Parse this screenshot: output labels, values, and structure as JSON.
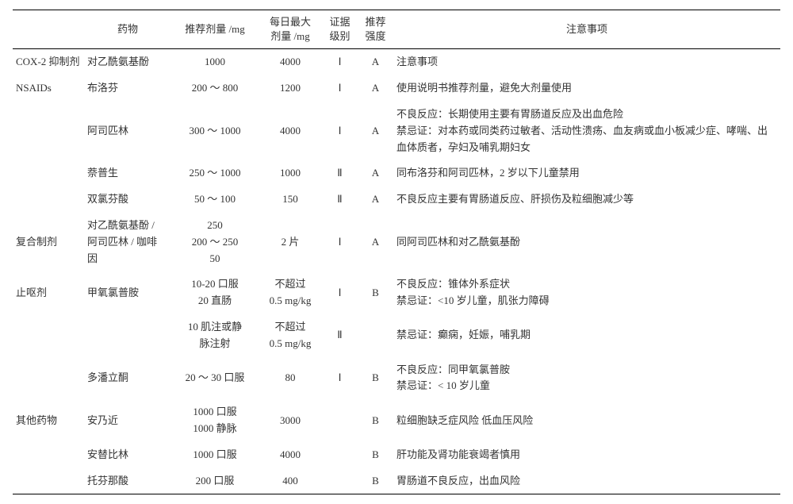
{
  "table": {
    "headers": {
      "category": "",
      "drug": "药物",
      "dose": "推荐剂量 /mg",
      "max": "每日最大\n剂量 /mg",
      "evidence": "证据\n级别",
      "recommend": "推荐\n强度",
      "notes": "注意事项"
    },
    "rows": [
      {
        "category": "COX-2 抑制剂",
        "drug": "对乙酰氨基酚",
        "dose": "1000",
        "max": "4000",
        "evidence": "Ⅰ",
        "recommend": "A",
        "notes": "注意事项"
      },
      {
        "category": "NSAIDs",
        "drug": "布洛芬",
        "dose": "200 ～ 800",
        "max": "1200",
        "evidence": "Ⅰ",
        "recommend": "A",
        "notes": "使用说明书推荐剂量，避免大剂量使用"
      },
      {
        "category": "",
        "drug": "阿司匹林",
        "dose": "300 ～ 1000",
        "max": "4000",
        "evidence": "Ⅰ",
        "recommend": "A",
        "notes": "不良反应：长期使用主要有胃肠道反应及出血危险\n禁忌证：对本药或同类药过敏者、活动性溃疡、血友病或血小板减少症、哮喘、出血体质者，孕妇及哺乳期妇女"
      },
      {
        "category": "",
        "drug": "萘普生",
        "dose": "250 ～ 1000",
        "max": "1000",
        "evidence": "Ⅱ",
        "recommend": "A",
        "notes": "同布洛芬和阿司匹林，2 岁以下儿童禁用"
      },
      {
        "category": "",
        "drug": "双氯芬酸",
        "dose": "50 ～ 100",
        "max": "150",
        "evidence": "Ⅱ",
        "recommend": "A",
        "notes": "不良反应主要有胃肠道反应、肝损伤及粒细胞减少等"
      },
      {
        "category": "复合制剂",
        "drug": "对乙酰氨基酚 /\n阿司匹林 / 咖啡\n因",
        "dose": "250\n200 ～ 250\n50",
        "max": "2 片",
        "evidence": "Ⅰ",
        "recommend": "A",
        "notes": "同阿司匹林和对乙酰氨基酚"
      },
      {
        "category": "止呕剂",
        "drug": "甲氧氯普胺",
        "dose": "10-20 口服\n20 直肠",
        "max": "不超过\n0.5 mg/kg",
        "evidence": "Ⅰ",
        "recommend": "B",
        "notes": "不良反应：锥体外系症状\n禁忌证：<10 岁儿童，肌张力障碍"
      },
      {
        "category": "",
        "drug": "",
        "dose": "10 肌注或静\n脉注射",
        "max": "不超过\n0.5 mg/kg",
        "evidence": "Ⅱ",
        "recommend": "",
        "notes": "禁忌证：癫痫，妊娠，哺乳期"
      },
      {
        "category": "",
        "drug": "多潘立酮",
        "dose": "20 ～ 30 口服",
        "max": "80",
        "evidence": "Ⅰ",
        "recommend": "B",
        "notes": "不良反应：同甲氧氯普胺\n禁忌证：< 10 岁儿童"
      },
      {
        "category": "其他药物",
        "drug": "安乃近",
        "dose": "1000 口服\n1000 静脉",
        "max": "3000",
        "evidence": "",
        "recommend": "B",
        "notes": "粒细胞缺乏症风险 低血压风险"
      },
      {
        "category": "",
        "drug": "安替比林",
        "dose": "1000 口服",
        "max": "4000",
        "evidence": "",
        "recommend": "B",
        "notes": "肝功能及肾功能衰竭者慎用"
      },
      {
        "category": "",
        "drug": "托芬那酸",
        "dose": "200 口服",
        "max": "400",
        "evidence": "",
        "recommend": "B",
        "notes": "胃肠道不良反应，出血风险"
      }
    ]
  }
}
